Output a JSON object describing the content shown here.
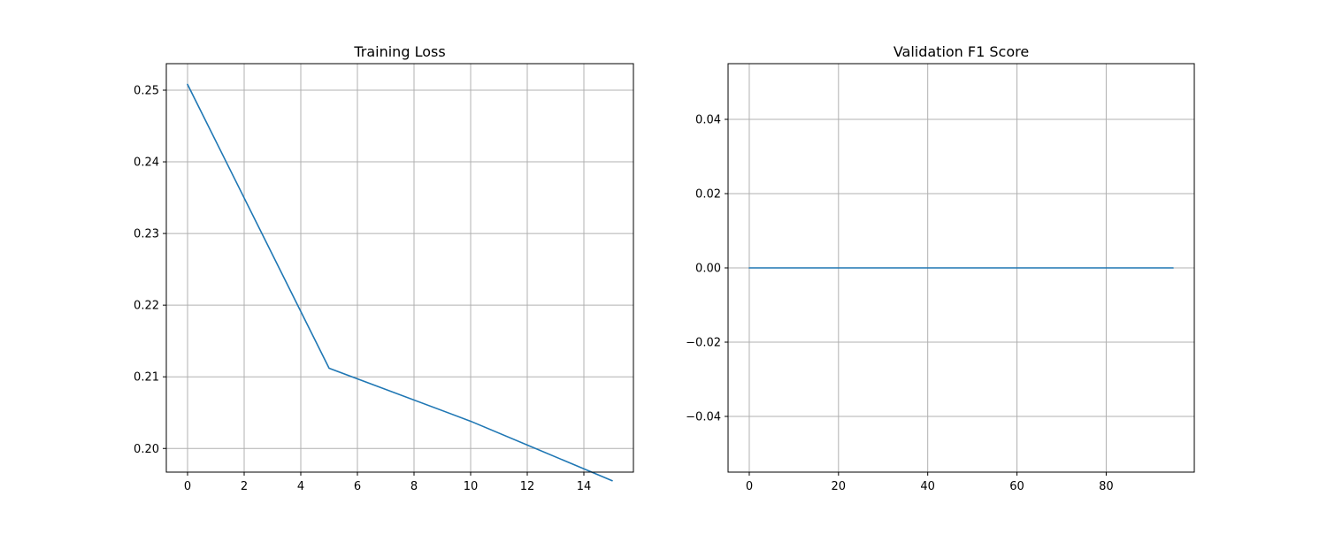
{
  "chart_data": [
    {
      "type": "line",
      "title": "Training Loss",
      "xlabel": "",
      "ylabel": "",
      "xlim": [
        -0.75,
        15.75
      ],
      "ylim": [
        0.1967,
        0.2537
      ],
      "xticks": [
        0,
        2,
        4,
        6,
        8,
        10,
        12,
        14
      ],
      "xtick_labels": [
        "0",
        "2",
        "4",
        "6",
        "8",
        "10",
        "12",
        "14"
      ],
      "yticks": [
        0.2,
        0.21,
        0.22,
        0.23,
        0.24,
        0.25
      ],
      "ytick_labels": [
        "0.20",
        "0.21",
        "0.22",
        "0.23",
        "0.24",
        "0.25"
      ],
      "grid": true,
      "series": [
        {
          "color": "#1f77b4",
          "x": [
            0,
            5,
            10,
            15
          ],
          "y": [
            0.2508,
            0.2112,
            0.2038,
            0.1955
          ]
        }
      ]
    },
    {
      "type": "line",
      "title": "Validation F1 Score",
      "xlabel": "",
      "ylabel": "",
      "xlim": [
        -4.75,
        99.75
      ],
      "ylim": [
        -0.055,
        0.055
      ],
      "xticks": [
        0,
        20,
        40,
        60,
        80
      ],
      "xtick_labels": [
        "0",
        "20",
        "40",
        "60",
        "80"
      ],
      "yticks": [
        -0.04,
        -0.02,
        0.0,
        0.02,
        0.04
      ],
      "ytick_labels": [
        "−0.04",
        "−0.02",
        "0.00",
        "0.02",
        "0.04"
      ],
      "grid": true,
      "series": [
        {
          "color": "#1f77b4",
          "x": [
            0,
            95
          ],
          "y": [
            0,
            0
          ]
        }
      ]
    }
  ]
}
